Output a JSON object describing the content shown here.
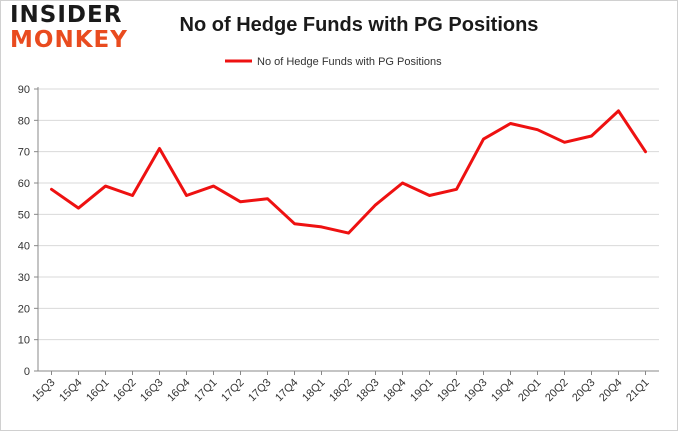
{
  "logo": {
    "line1": "INSIDER",
    "line2": "MONKEY"
  },
  "chart_data": {
    "type": "line",
    "title": "No of Hedge Funds with PG Positions",
    "xlabel": "",
    "ylabel": "",
    "categories": [
      "15Q3",
      "15Q4",
      "16Q1",
      "16Q2",
      "16Q3",
      "16Q4",
      "17Q1",
      "17Q2",
      "17Q3",
      "17Q4",
      "18Q1",
      "18Q2",
      "18Q3",
      "18Q4",
      "19Q1",
      "19Q2",
      "19Q3",
      "19Q4",
      "20Q1",
      "20Q2",
      "20Q3",
      "20Q4",
      "21Q1"
    ],
    "series": [
      {
        "name": "No of Hedge Funds with PG Positions",
        "color": "#ee1111",
        "values": [
          58,
          52,
          59,
          56,
          71,
          56,
          59,
          54,
          55,
          47,
          46,
          44,
          53,
          60,
          56,
          58,
          74,
          79,
          77,
          73,
          75,
          83,
          70
        ]
      }
    ],
    "ylim": [
      0,
      90
    ],
    "yticks": [
      0,
      10,
      20,
      30,
      40,
      50,
      60,
      70,
      80,
      90
    ],
    "grid": true,
    "legend": "top-center"
  }
}
